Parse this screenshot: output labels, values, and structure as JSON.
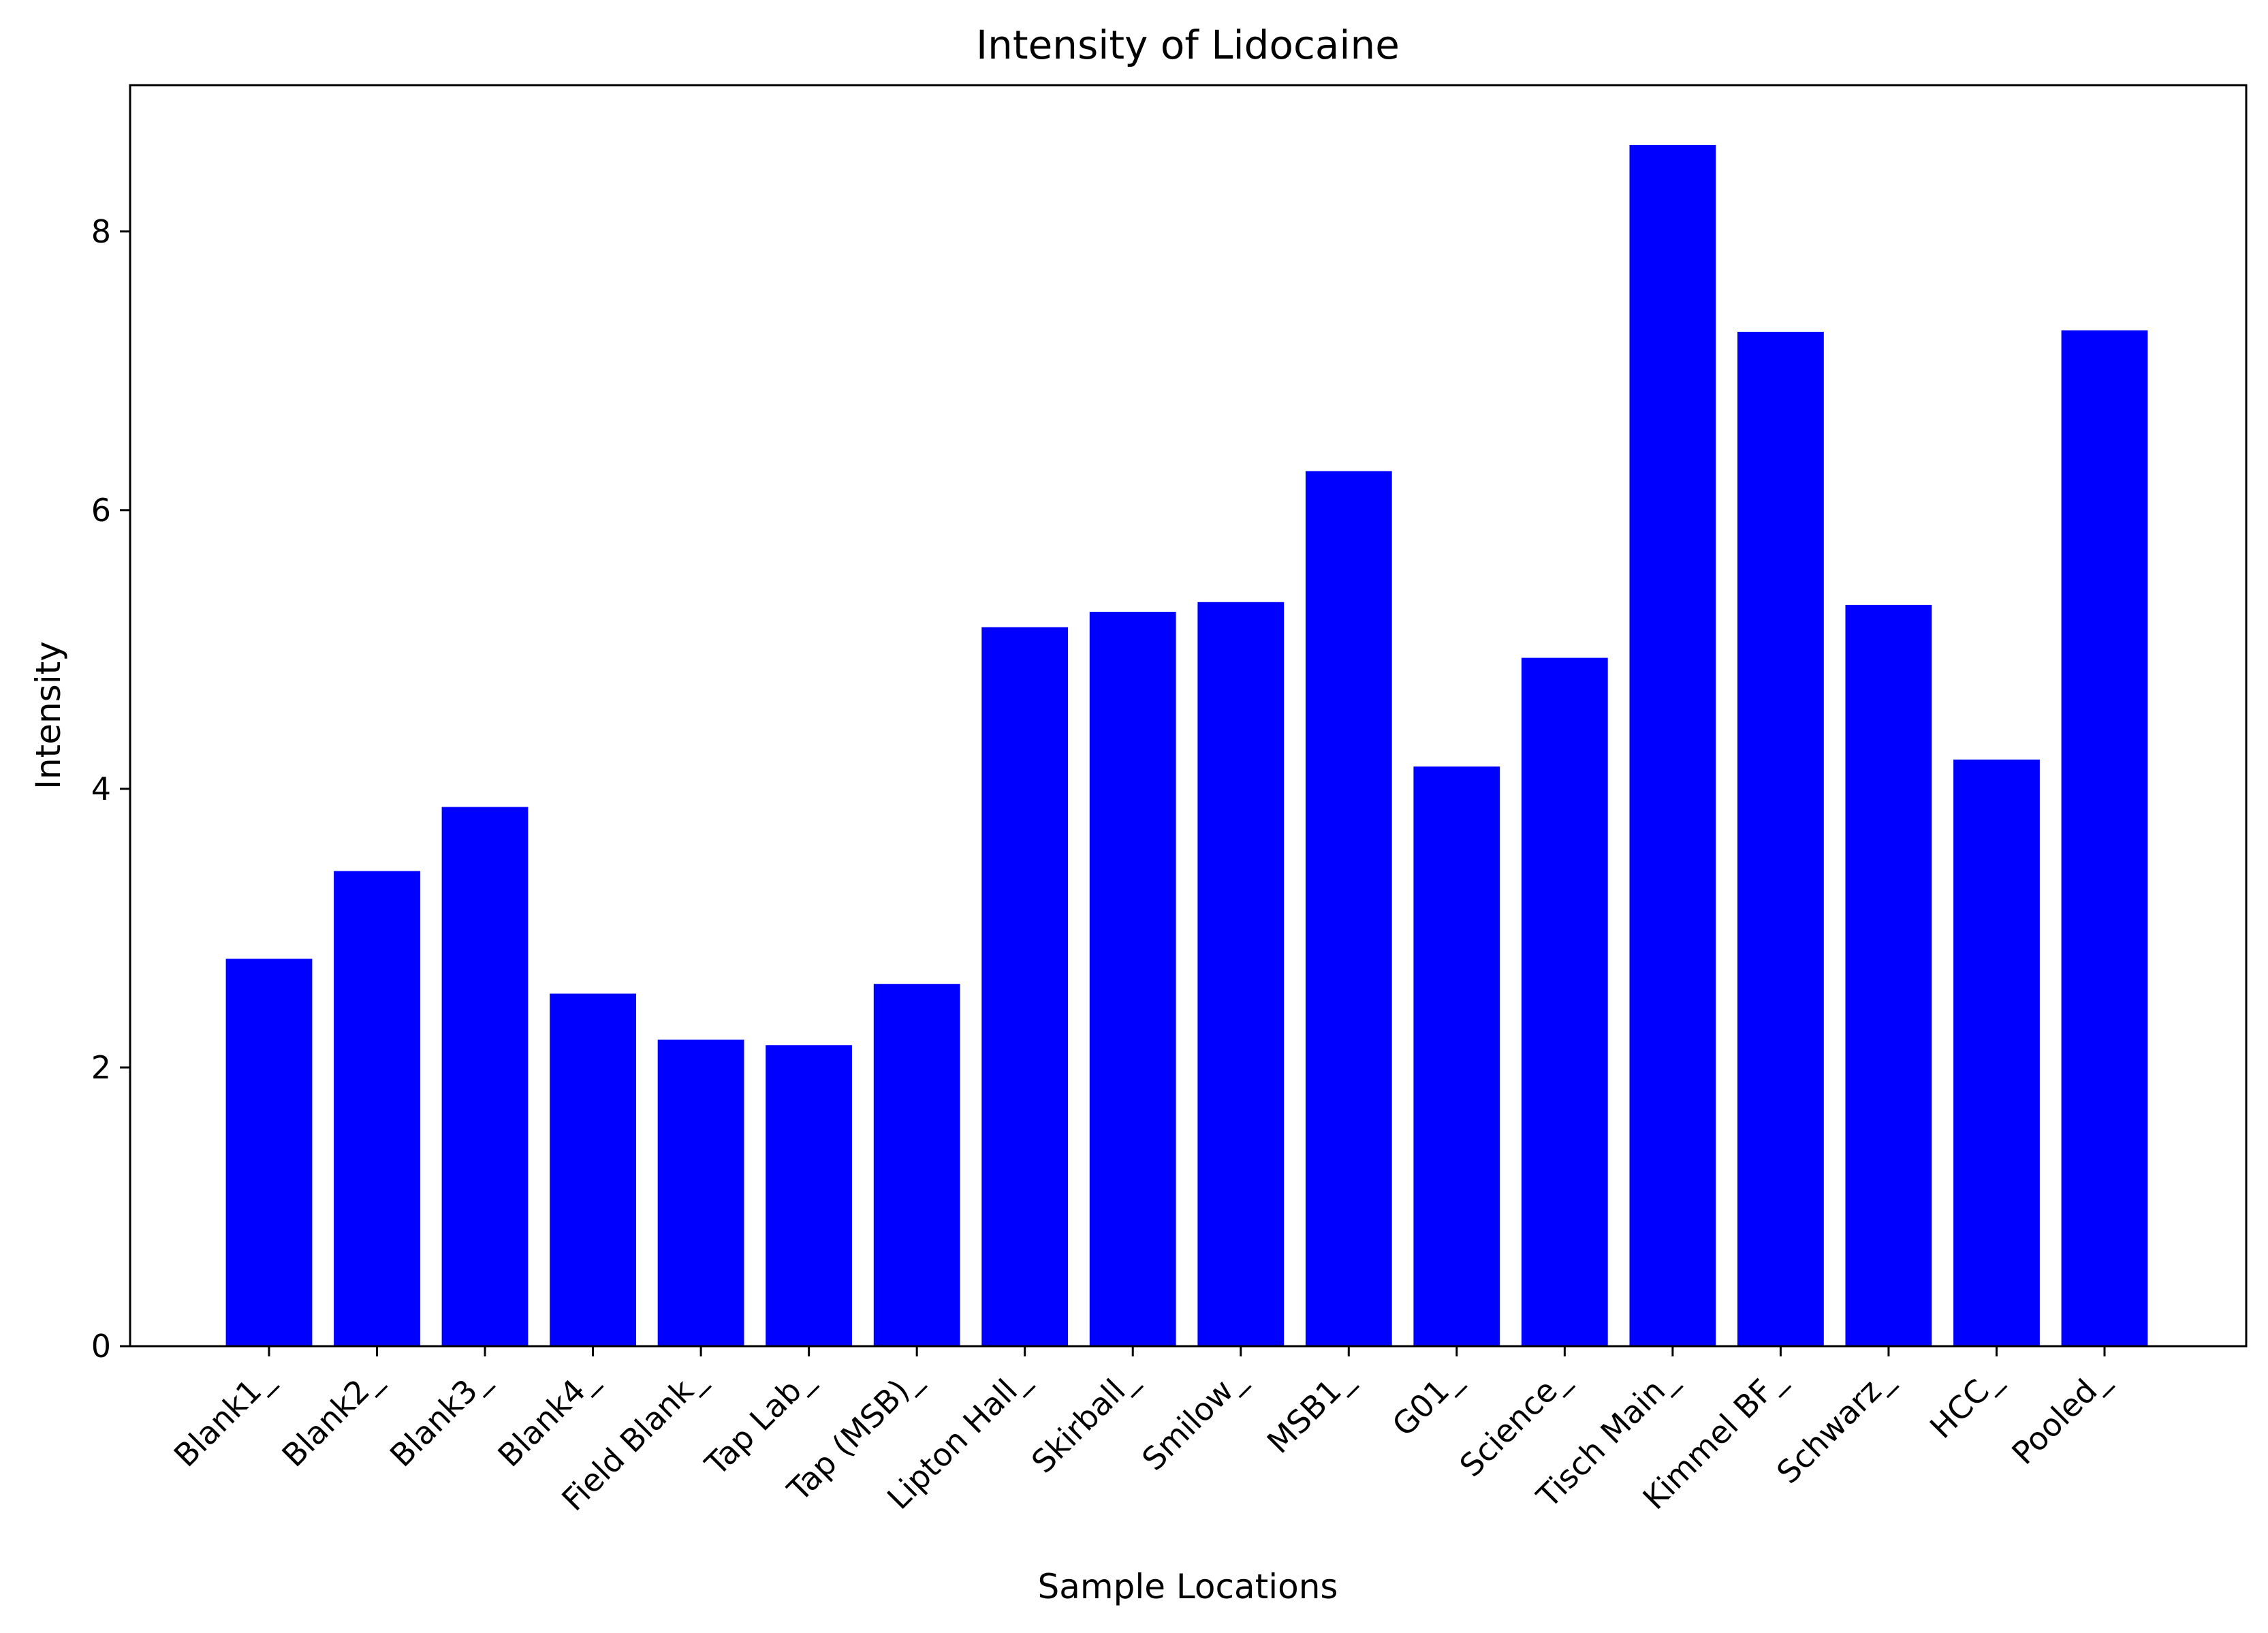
{
  "chart_data": {
    "type": "bar",
    "title": "Intensity of Lidocaine",
    "xlabel": "Sample Locations",
    "ylabel": "Intensity",
    "ylim": [
      0,
      9.05
    ],
    "yticks": [
      0,
      2,
      4,
      6,
      8
    ],
    "grid": false,
    "legend": "none",
    "bar_color": "#0000ff",
    "categories": [
      "Blank1_",
      "Blank2_",
      "Blank3_",
      "Blank4_",
      "Field Blank_",
      "Tap Lab_",
      "Tap (MSB)_",
      "Lipton Hall_",
      "Skirball_",
      "Smilow_",
      "MSB1_",
      "G01_",
      "Science_",
      "Tisch Main_",
      "Kimmel BF_",
      "Schwarz_",
      "HCC_",
      "Pooled_"
    ],
    "values": [
      2.78,
      3.41,
      3.87,
      2.53,
      2.2,
      2.16,
      2.6,
      5.16,
      5.27,
      5.34,
      6.28,
      4.16,
      4.94,
      8.62,
      7.28,
      5.32,
      4.21,
      7.29
    ]
  }
}
